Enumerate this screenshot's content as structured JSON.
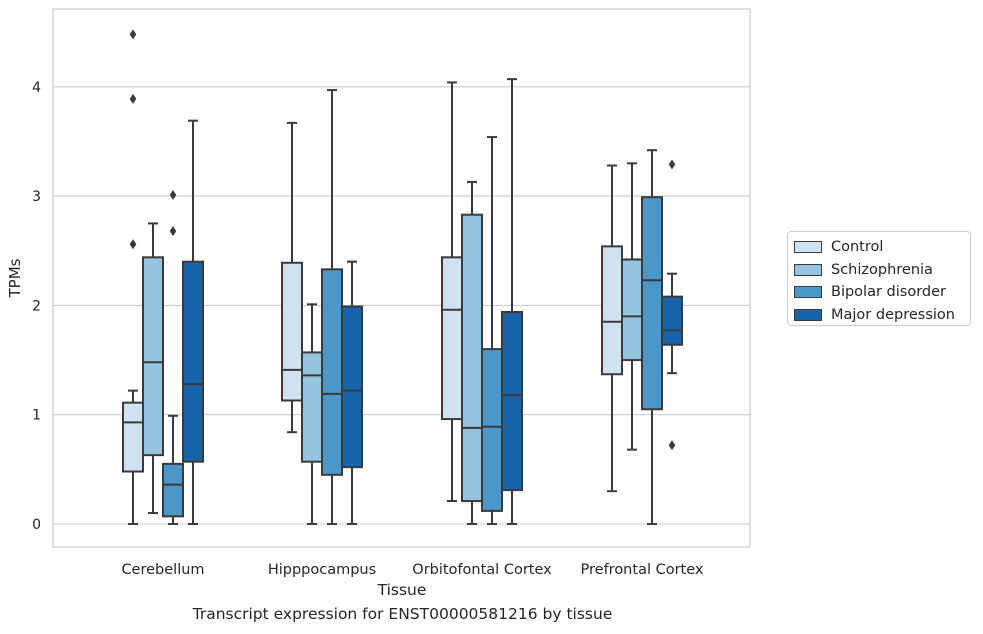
{
  "chart_data": {
    "type": "box",
    "title": "",
    "xlabel": "Tissue",
    "ylabel": "TPMs",
    "caption": "Transcript expression for ENST00000581216 by tissue",
    "categories": [
      "Cerebellum",
      "Hipppocampus",
      "Orbitofontal Cortex",
      "Prefrontal Cortex"
    ],
    "y_ticks": [
      "0",
      "1",
      "2",
      "3",
      "4"
    ],
    "ylim": [
      -0.22,
      4.72
    ],
    "grid": "horizontal",
    "legend_position": "right",
    "series": [
      {
        "name": "Control",
        "color": "#d0e1f2",
        "boxes": [
          {
            "min": 0.0,
            "q1": 0.48,
            "median": 0.93,
            "q3": 1.11,
            "max": 1.22,
            "outliers": [
              2.56,
              3.89,
              4.48
            ]
          },
          {
            "min": 0.84,
            "q1": 1.13,
            "median": 1.41,
            "q3": 2.39,
            "max": 3.67,
            "outliers": []
          },
          {
            "min": 0.21,
            "q1": 0.96,
            "median": 1.96,
            "q3": 2.44,
            "max": 4.04,
            "outliers": []
          },
          {
            "min": 0.3,
            "q1": 1.37,
            "median": 1.85,
            "q3": 2.54,
            "max": 3.28,
            "outliers": []
          }
        ]
      },
      {
        "name": "Schizophrenia",
        "color": "#94c4df",
        "boxes": [
          {
            "min": 0.1,
            "q1": 0.63,
            "median": 1.48,
            "q3": 2.44,
            "max": 2.75,
            "outliers": []
          },
          {
            "min": 0.0,
            "q1": 0.57,
            "median": 1.36,
            "q3": 1.57,
            "max": 2.01,
            "outliers": []
          },
          {
            "min": 0.0,
            "q1": 0.21,
            "median": 0.88,
            "q3": 2.83,
            "max": 3.13,
            "outliers": []
          },
          {
            "min": 0.68,
            "q1": 1.5,
            "median": 1.9,
            "q3": 2.42,
            "max": 3.3,
            "outliers": []
          }
        ]
      },
      {
        "name": "Bipolar disorder",
        "color": "#4a98c9",
        "boxes": [
          {
            "min": 0.0,
            "q1": 0.07,
            "median": 0.36,
            "q3": 0.55,
            "max": 0.99,
            "outliers": [
              2.68,
              3.01
            ]
          },
          {
            "min": 0.0,
            "q1": 0.45,
            "median": 1.19,
            "q3": 2.33,
            "max": 3.97,
            "outliers": []
          },
          {
            "min": 0.0,
            "q1": 0.12,
            "median": 0.89,
            "q3": 1.6,
            "max": 3.54,
            "outliers": []
          },
          {
            "min": 0.0,
            "q1": 1.05,
            "median": 2.23,
            "q3": 2.99,
            "max": 3.42,
            "outliers": []
          }
        ]
      },
      {
        "name": "Major depression",
        "color": "#1764ab",
        "boxes": [
          {
            "min": 0.0,
            "q1": 0.57,
            "median": 1.28,
            "q3": 2.4,
            "max": 3.69,
            "outliers": []
          },
          {
            "min": 0.0,
            "q1": 0.52,
            "median": 1.22,
            "q3": 1.99,
            "max": 2.4,
            "outliers": []
          },
          {
            "min": 0.0,
            "q1": 0.31,
            "median": 1.18,
            "q3": 1.94,
            "max": 4.07,
            "outliers": []
          },
          {
            "min": 1.38,
            "q1": 1.64,
            "median": 1.77,
            "q3": 2.08,
            "max": 2.29,
            "outliers": [
              0.72,
              3.29
            ]
          }
        ]
      }
    ]
  }
}
